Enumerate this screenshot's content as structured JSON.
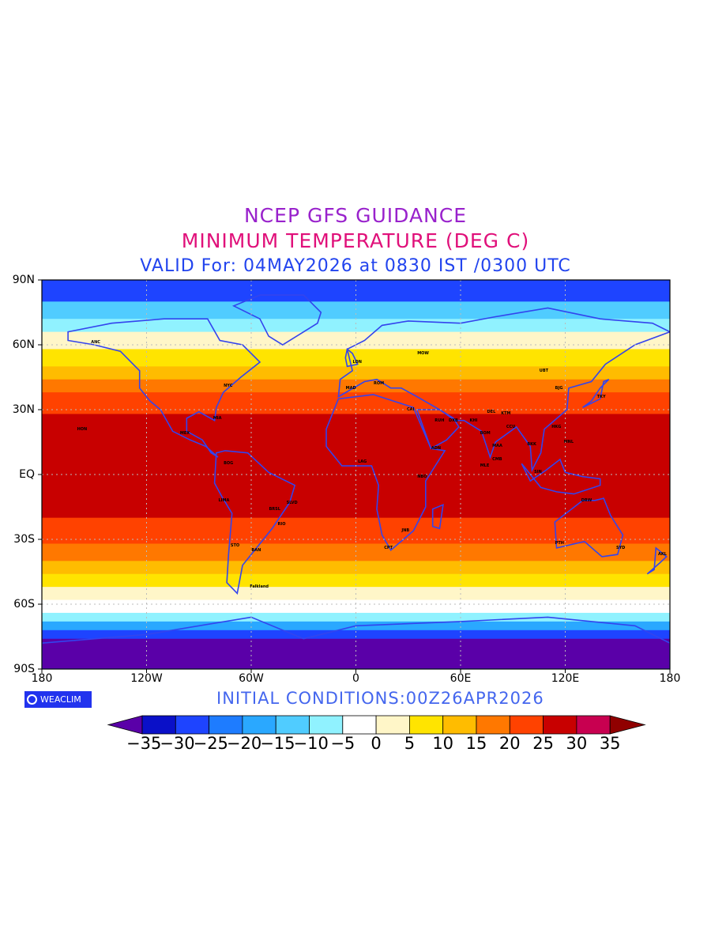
{
  "titles": {
    "line1": "NCEP GFS GUIDANCE",
    "line2": "MINIMUM TEMPERATURE (DEG C)",
    "line3": "VALID For: 04MAY2026 at 0830 IST /0300 UTC"
  },
  "colors": {
    "title1": "#9922cc",
    "title2": "#e0107a",
    "title3": "#2244ee",
    "coast": "#3344ee",
    "initcond": "#4466ee"
  },
  "axes": {
    "lat_labels": [
      "90N",
      "60N",
      "30N",
      "EQ",
      "30S",
      "60S",
      "90S"
    ],
    "lon_labels": [
      "180",
      "120W",
      "60W",
      "0",
      "60E",
      "120E",
      "180"
    ]
  },
  "logo": {
    "text": "WEACLIM",
    "icon": "copyright-circle-icon"
  },
  "initial_conditions": "INITIAL CONDITIONS:00Z26APR2026",
  "colorbar": {
    "labels": [
      "−35",
      "−30",
      "−25",
      "−20",
      "−15",
      "−10",
      "−5",
      "0",
      "5",
      "10",
      "15",
      "20",
      "25",
      "30",
      "35"
    ],
    "colors": [
      "#5a00a8",
      "#0a10c8",
      "#1e44ff",
      "#1e7cff",
      "#2aa8ff",
      "#50ccff",
      "#90f2ff",
      "#ffffff",
      "#fff6c8",
      "#ffe400",
      "#ffbc00",
      "#ff7800",
      "#ff4200",
      "#c80000",
      "#c80050",
      "#900000"
    ]
  },
  "cities": [
    {
      "name": "ANC",
      "lon": -150,
      "lat": 61
    },
    {
      "name": "HON",
      "lon": -158,
      "lat": 21
    },
    {
      "name": "MEX",
      "lon": -99,
      "lat": 19
    },
    {
      "name": "MIA",
      "lon": -80,
      "lat": 26
    },
    {
      "name": "NYC",
      "lon": -74,
      "lat": 41
    },
    {
      "name": "BOG",
      "lon": -74,
      "lat": 5
    },
    {
      "name": "LIMA",
      "lon": -77,
      "lat": -12
    },
    {
      "name": "BRSL",
      "lon": -48,
      "lat": -16
    },
    {
      "name": "SLVD",
      "lon": -38,
      "lat": -13
    },
    {
      "name": "RIO",
      "lon": -43,
      "lat": -23
    },
    {
      "name": "STO",
      "lon": -70,
      "lat": -33
    },
    {
      "name": "BAN",
      "lon": -58,
      "lat": -35
    },
    {
      "name": "Falkland",
      "lon": -59,
      "lat": -52
    },
    {
      "name": "LON",
      "lon": 0,
      "lat": 52
    },
    {
      "name": "MAD",
      "lon": -4,
      "lat": 40
    },
    {
      "name": "ROM",
      "lon": 12,
      "lat": 42
    },
    {
      "name": "MOW",
      "lon": 37,
      "lat": 56
    },
    {
      "name": "CAI",
      "lon": 31,
      "lat": 30
    },
    {
      "name": "LAG",
      "lon": 3,
      "lat": 6
    },
    {
      "name": "NBO",
      "lon": 37,
      "lat": -1
    },
    {
      "name": "JNB",
      "lon": 28,
      "lat": -26
    },
    {
      "name": "CPT",
      "lon": 18,
      "lat": -34
    },
    {
      "name": "ADN",
      "lon": 45,
      "lat": 12
    },
    {
      "name": "RUH",
      "lon": 47,
      "lat": 25
    },
    {
      "name": "DXB",
      "lon": 55,
      "lat": 25
    },
    {
      "name": "KHI",
      "lon": 67,
      "lat": 25
    },
    {
      "name": "DEL",
      "lon": 77,
      "lat": 29
    },
    {
      "name": "BOM",
      "lon": 73,
      "lat": 19
    },
    {
      "name": "CCU",
      "lon": 88,
      "lat": 22
    },
    {
      "name": "MAA",
      "lon": 80,
      "lat": 13
    },
    {
      "name": "CMB",
      "lon": 80,
      "lat": 7
    },
    {
      "name": "MLE",
      "lon": 73,
      "lat": 4
    },
    {
      "name": "KTM",
      "lon": 85,
      "lat": 28
    },
    {
      "name": "BKK",
      "lon": 100,
      "lat": 14
    },
    {
      "name": "SIN",
      "lon": 104,
      "lat": 1
    },
    {
      "name": "HKG",
      "lon": 114,
      "lat": 22
    },
    {
      "name": "BJG",
      "lon": 116,
      "lat": 40
    },
    {
      "name": "TKY",
      "lon": 140,
      "lat": 36
    },
    {
      "name": "MNL",
      "lon": 121,
      "lat": 15
    },
    {
      "name": "DRW",
      "lon": 131,
      "lat": -12
    },
    {
      "name": "PTH",
      "lon": 116,
      "lat": -32
    },
    {
      "name": "SYD",
      "lon": 151,
      "lat": -34
    },
    {
      "name": "AKL",
      "lon": 175,
      "lat": -37
    },
    {
      "name": "UBT",
      "lon": 107,
      "lat": 48
    }
  ]
}
